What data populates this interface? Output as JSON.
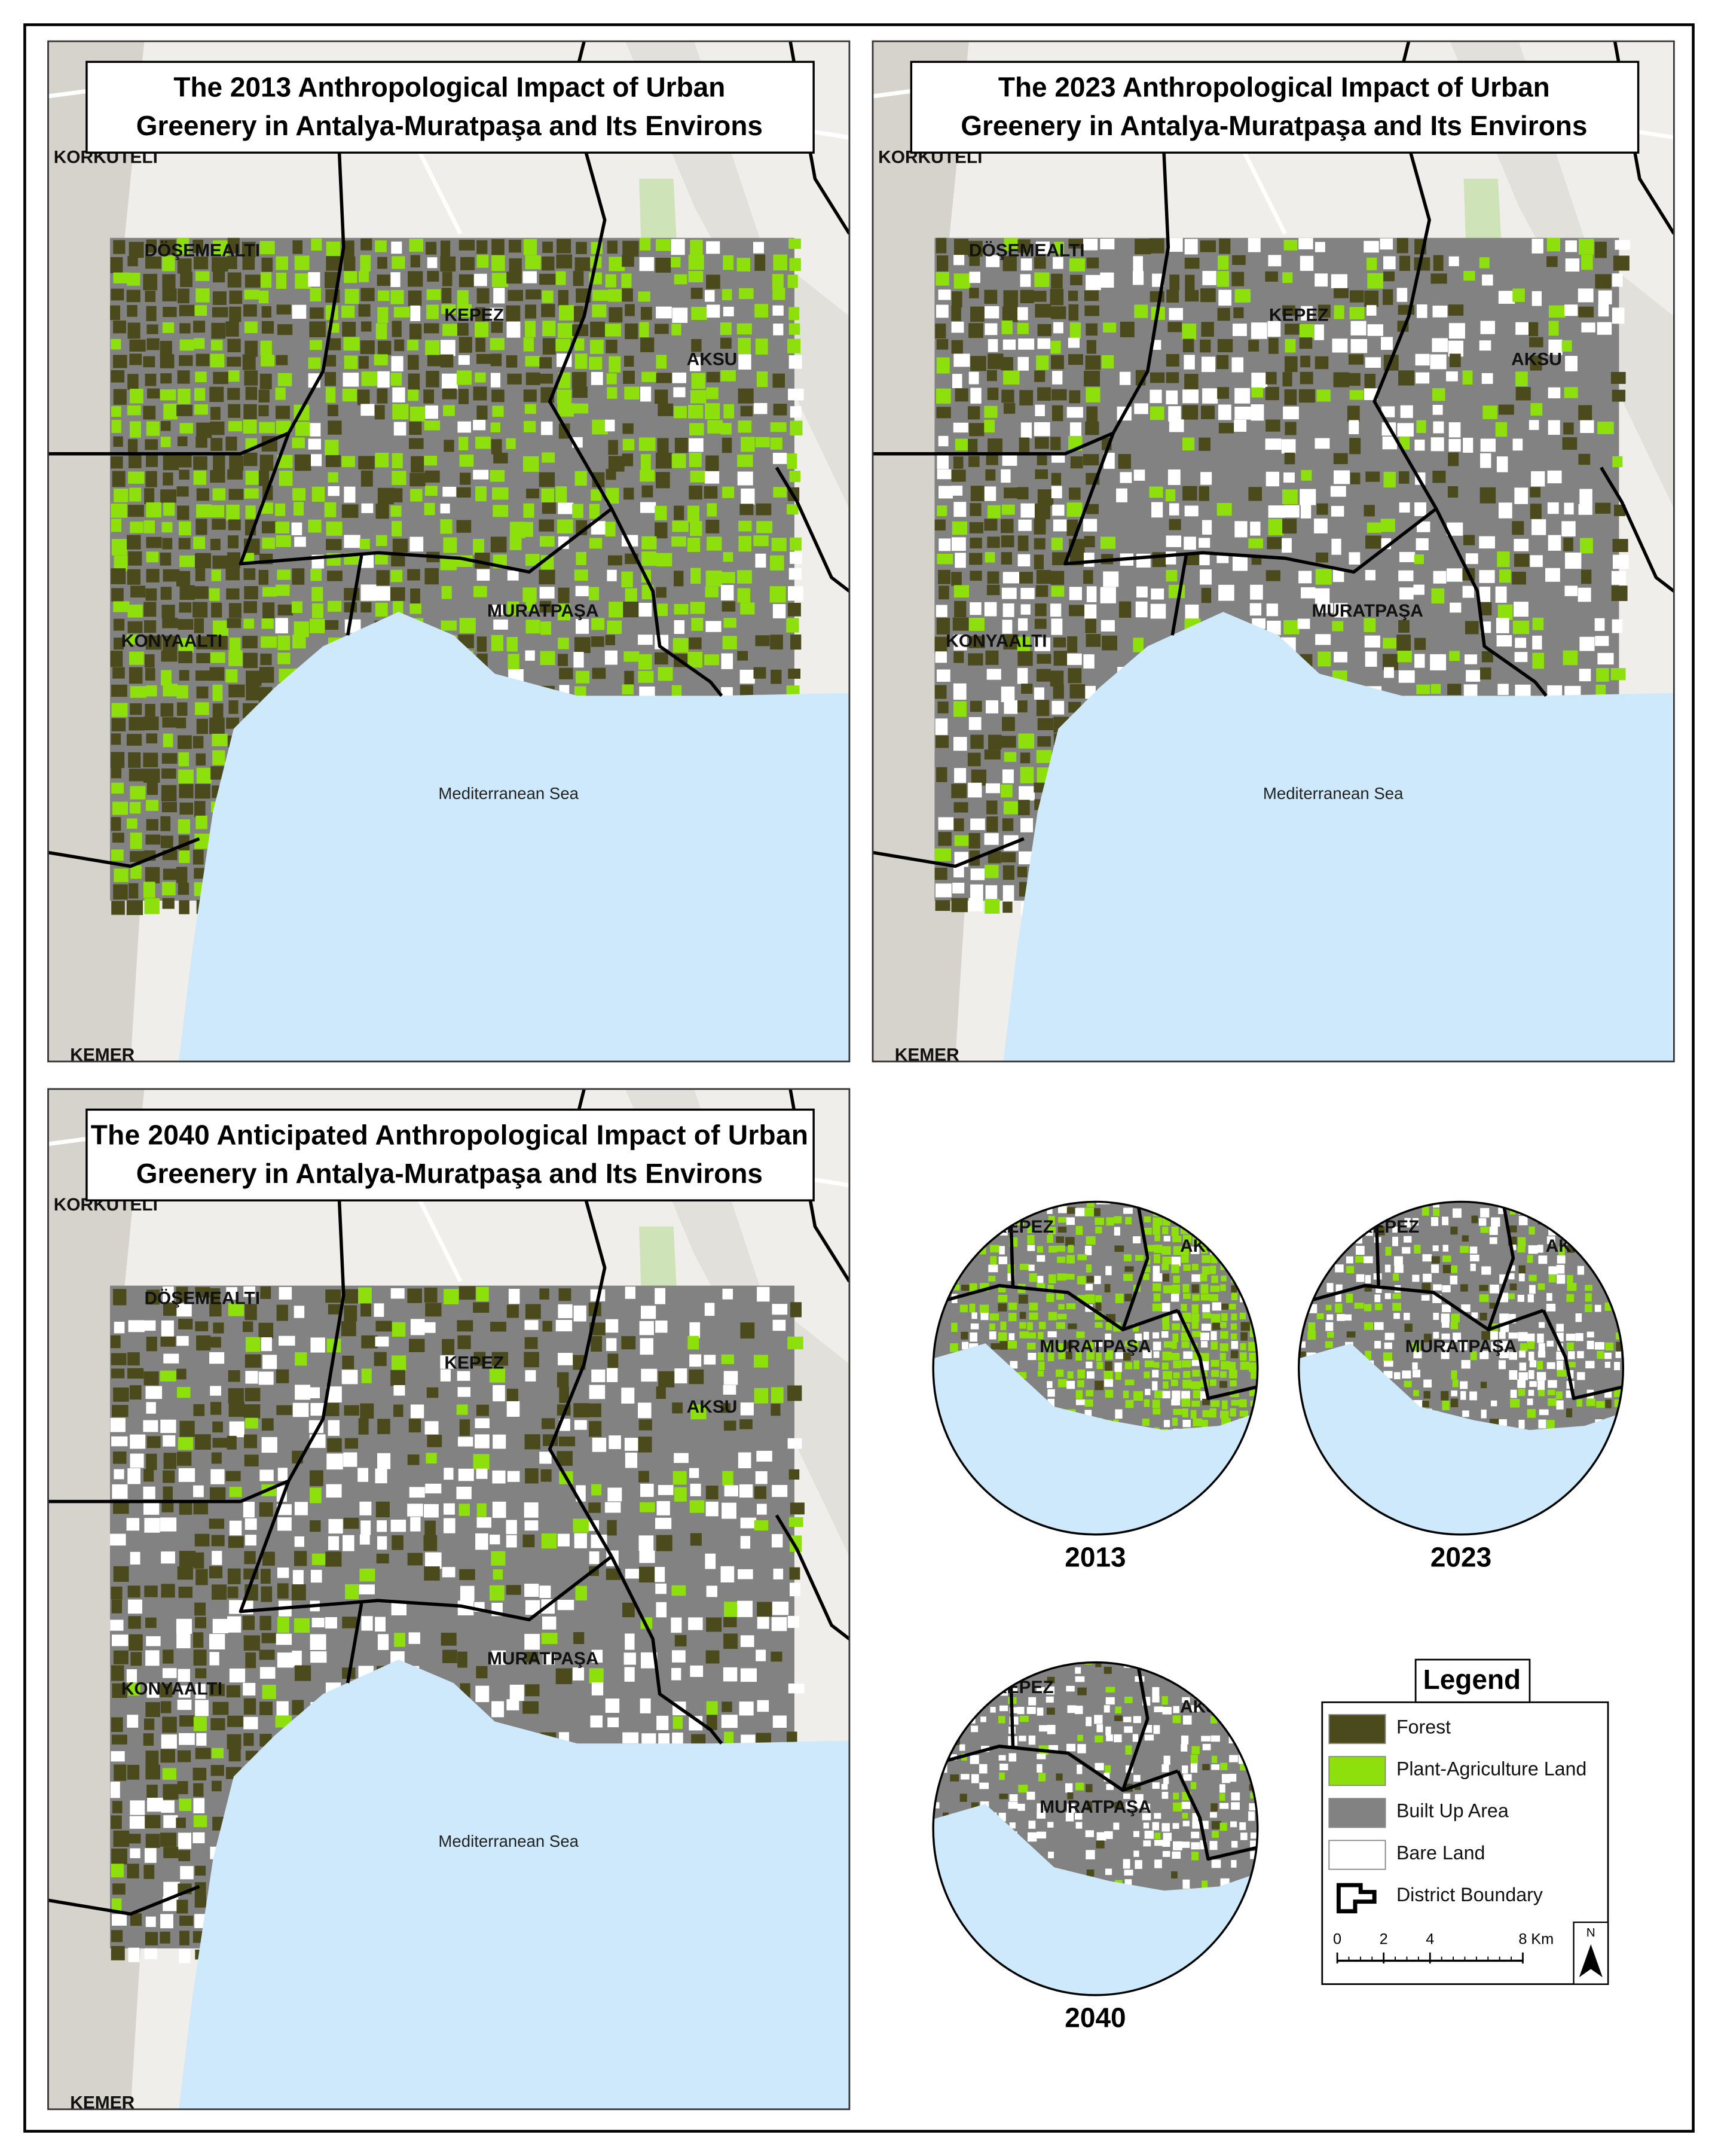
{
  "maps": [
    {
      "title_lines": [
        "The 2013 Anthropological Impact of Urban",
        "Greenery in Antalya-Muratpaşa and Its Environs"
      ],
      "labels": [
        "KORKUTELİ",
        "DÖŞEMEALTI",
        "KEPEZ",
        "AKSU",
        "MURATPAŞA",
        "KONYAALTI",
        "Mediterranean Sea",
        "KEMER"
      ]
    },
    {
      "title_lines": [
        "The 2023 Anthropological Impact of Urban",
        "Greenery in Antalya-Muratpaşa and Its Environs"
      ],
      "labels": [
        "KORKUTELİ",
        "DÖŞEMEALTI",
        "KEPEZ",
        "AKSU",
        "MURATPAŞA",
        "KONYAALTI",
        "Mediterranean Sea",
        "KEMER"
      ]
    },
    {
      "title_lines": [
        "The 2040 Anticipated Anthropological Impact of Urban",
        "Greenery in Antalya-Muratpaşa and Its Environs"
      ],
      "labels": [
        "KORKUTELİ",
        "DÖŞEMEALTI",
        "KEPEZ",
        "AKSU",
        "MURATPAŞA",
        "KONYAALTI",
        "Mediterranean Sea",
        "KEMER"
      ]
    }
  ],
  "insets": [
    {
      "year": "2013",
      "labels": [
        "KEPEZ",
        "AKSU",
        "MURATPAŞA"
      ]
    },
    {
      "year": "2023",
      "labels": [
        "KEPEZ",
        "AKSU",
        "MURATPAŞA"
      ]
    },
    {
      "year": "2040",
      "labels": [
        "KEPEZ",
        "AKSU",
        "MURATPAŞA"
      ]
    }
  ],
  "legend": {
    "title": "Legend",
    "items": [
      {
        "label": "Forest",
        "color": "#4b4a1d"
      },
      {
        "label": "Plant-Agriculture Land",
        "color": "#8ee00c"
      },
      {
        "label": "Built Up Area",
        "color": "#828282"
      },
      {
        "label": "Bare Land",
        "color": "#ffffff"
      },
      {
        "label": "District Boundary"
      }
    ]
  },
  "scale_bar": {
    "ticks": [
      0,
      2,
      4,
      8
    ],
    "unit": "Km",
    "north": "N"
  }
}
